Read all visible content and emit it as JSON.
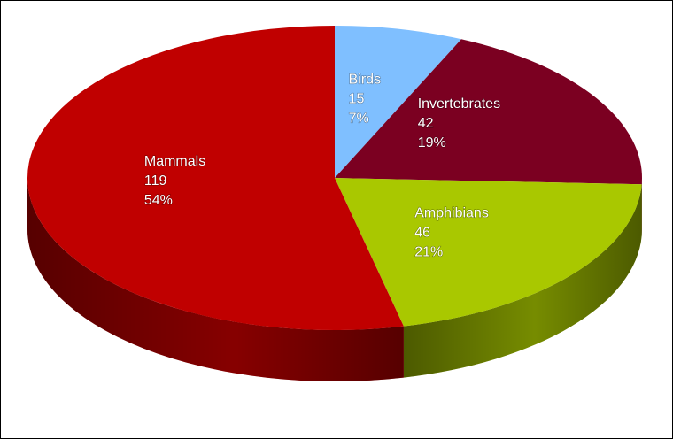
{
  "chart_data": {
    "type": "pie",
    "style": "3d",
    "slices": [
      {
        "label": "Birds",
        "value": 15,
        "percent": "7%",
        "color": "#7fbfff"
      },
      {
        "label": "Invertebrates",
        "value": 42,
        "percent": "19%",
        "color": "#7b0021"
      },
      {
        "label": "Amphibians",
        "value": 46,
        "percent": "21%",
        "color": "#a9c800"
      },
      {
        "label": "Mammals",
        "value": 119,
        "percent": "54%",
        "color": "#c00000"
      }
    ],
    "legend": "none"
  }
}
